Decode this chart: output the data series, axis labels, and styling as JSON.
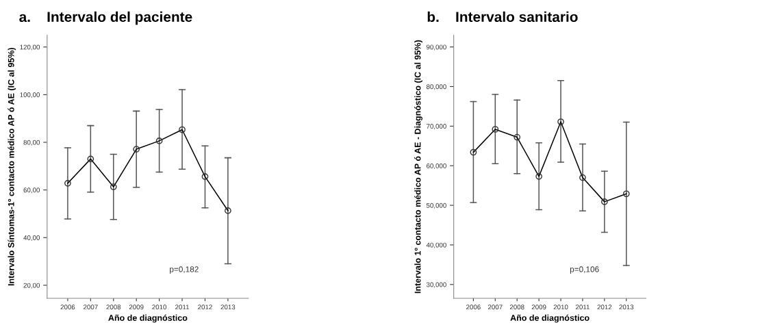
{
  "chart_data": [
    {
      "type": "line",
      "title": "a.    Intervalo del paciente",
      "xlabel": "Año de diagnóstico",
      "ylabel": "Intervalo Síntomas-1º contacto médico AP ó AE (IC al 95%)",
      "categories": [
        "2006",
        "2007",
        "2008",
        "2009",
        "2010",
        "2011",
        "2012",
        "2013"
      ],
      "series": [
        {
          "color": "#000000",
          "values": [
            62.8,
            73.0,
            61.3,
            77.1,
            80.6,
            85.3,
            65.6,
            51.3
          ],
          "errors": [
            [
              47.8,
              77.7
            ],
            [
              59.1,
              87.0
            ],
            [
              47.6,
              75.0
            ],
            [
              61.1,
              93.1
            ],
            [
              67.5,
              93.8
            ],
            [
              68.7,
              102.1
            ],
            [
              52.5,
              78.5
            ],
            [
              29.0,
              73.5
            ]
          ]
        }
      ],
      "ylim": [
        14.5,
        125
      ],
      "yticks": [
        {
          "value": 20,
          "label": "20,00"
        },
        {
          "value": 40,
          "label": "40,00"
        },
        {
          "value": 60,
          "label": "60,00"
        },
        {
          "value": 80,
          "label": "80,00"
        },
        {
          "value": 100,
          "label": "100,00"
        },
        {
          "value": 120,
          "label": "120,00"
        }
      ],
      "marker": "circle",
      "grid": false,
      "legend": false,
      "annotations": [
        "p=0,182"
      ]
    },
    {
      "type": "line",
      "title": "b.    Intervalo sanitario",
      "xlabel": "Año de diagnóstico",
      "ylabel": "Intervalo 1º contacto médico AP ó AE - Diagnóstico (IC al 95%)",
      "categories": [
        "2006",
        "2007",
        "2008",
        "2009",
        "2010",
        "2011",
        "2012",
        "2013"
      ],
      "series": [
        {
          "color": "#000000",
          "values": [
            63.4,
            69.2,
            67.2,
            57.3,
            71.1,
            57.0,
            50.9,
            52.9
          ],
          "errors": [
            [
              50.7,
              76.2
            ],
            [
              60.5,
              78.0
            ],
            [
              58.0,
              76.6
            ],
            [
              48.9,
              65.8
            ],
            [
              60.9,
              81.5
            ],
            [
              48.6,
              65.5
            ],
            [
              43.2,
              58.6
            ],
            [
              34.8,
              71.0
            ]
          ]
        }
      ],
      "ylim": [
        26.5,
        93
      ],
      "yticks": [
        {
          "value": 30,
          "label": "30,000"
        },
        {
          "value": 40,
          "label": "40,000"
        },
        {
          "value": 50,
          "label": "50,000"
        },
        {
          "value": 60,
          "label": "60,000"
        },
        {
          "value": 70,
          "label": "70,000"
        },
        {
          "value": 80,
          "label": "80,000"
        },
        {
          "value": 90,
          "label": "90,000"
        }
      ],
      "marker": "circle",
      "grid": false,
      "legend": false,
      "annotations": [
        "p=0,106"
      ]
    }
  ]
}
